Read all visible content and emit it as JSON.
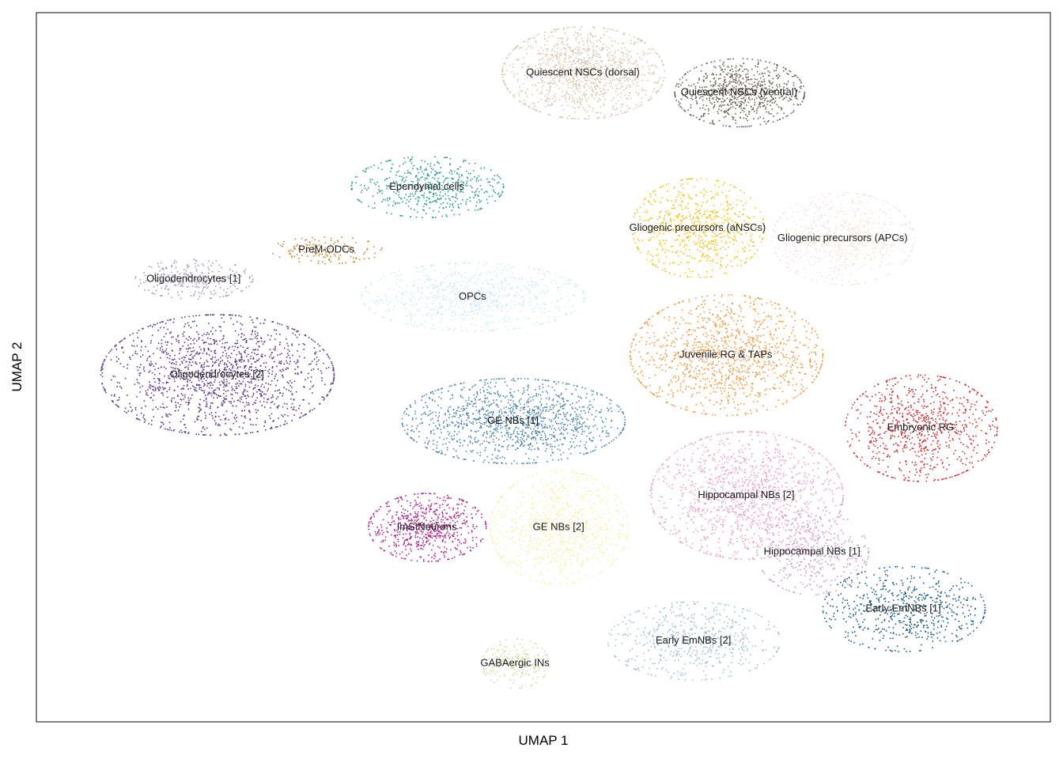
{
  "chart_data": {
    "type": "scatter",
    "title": "",
    "xlabel": "UMAP 1",
    "ylabel": "UMAP 2",
    "xlim": [
      0,
      100
    ],
    "ylim": [
      0,
      100
    ],
    "grid": false,
    "legend": "none (labels placed on clusters)",
    "series": [
      {
        "name": "Quiescent NSCs (dorsal)",
        "color": "#d9c6ae",
        "cx": 53.9,
        "cy": 91.6,
        "rx": 8.0,
        "ry": 6.5,
        "n": 1100
      },
      {
        "name": "Quiescent NSCs (ventral)",
        "color": "#6b6558",
        "cx": 69.3,
        "cy": 88.8,
        "rx": 6.4,
        "ry": 4.8,
        "n": 750
      },
      {
        "name": "Ependymal cells",
        "color": "#2a9d94",
        "cx": 38.5,
        "cy": 75.5,
        "rx": 7.5,
        "ry": 4.3,
        "n": 500
      },
      {
        "name": "Gliogenic precursors (aNSCs)",
        "color": "#f2c318",
        "cx": 65.2,
        "cy": 69.7,
        "rx": 6.5,
        "ry": 7.0,
        "n": 650
      },
      {
        "name": "Gliogenic precursors (APCs)",
        "color": "#f5dfd6",
        "cx": 79.5,
        "cy": 68.2,
        "rx": 7.0,
        "ry": 6.5,
        "n": 600
      },
      {
        "name": "PreM-ODCs",
        "color": "#c98a2f",
        "cx": 28.6,
        "cy": 66.6,
        "rx": 5.5,
        "ry": 1.9,
        "n": 140
      },
      {
        "name": "Oligodendrocytes [1]",
        "color": "#a993c4",
        "cx": 15.5,
        "cy": 62.5,
        "rx": 5.8,
        "ry": 2.8,
        "n": 250
      },
      {
        "name": "OPCs",
        "color": "#cde9f6",
        "cx": 43.0,
        "cy": 60.0,
        "rx": 11.0,
        "ry": 4.8,
        "n": 750
      },
      {
        "name": "Oligodendrocytes [2]",
        "color": "#5b3a8c",
        "cx": 17.8,
        "cy": 49.0,
        "rx": 11.5,
        "ry": 8.5,
        "n": 1500
      },
      {
        "name": "Juvenile RG & TAPs",
        "color": "#f09a3c",
        "cx": 68.0,
        "cy": 51.8,
        "rx": 9.5,
        "ry": 8.5,
        "n": 1150
      },
      {
        "name": "GE NBs [1]",
        "color": "#4f8aad",
        "cx": 47.0,
        "cy": 42.5,
        "rx": 11.0,
        "ry": 6.0,
        "n": 1300
      },
      {
        "name": "Embryonic RG",
        "color": "#cf3232",
        "cx": 87.2,
        "cy": 41.5,
        "rx": 7.5,
        "ry": 7.5,
        "n": 800
      },
      {
        "name": "ImStNeurons",
        "color": "#b02a8e",
        "cx": 38.5,
        "cy": 27.5,
        "rx": 5.8,
        "ry": 4.8,
        "n": 650
      },
      {
        "name": "Hippocampal NBs [2]",
        "color": "#eaa3c8",
        "cx": 70.0,
        "cy": 32.0,
        "rx": 9.5,
        "ry": 9.0,
        "n": 1300
      },
      {
        "name": "GE NBs [2]",
        "color": "#f5f3a4",
        "cx": 51.5,
        "cy": 27.5,
        "rx": 6.8,
        "ry": 8.0,
        "n": 800
      },
      {
        "name": "Hippocampal NBs [1]",
        "color": "#c89ac6",
        "cx": 76.5,
        "cy": 24.0,
        "rx": 5.5,
        "ry": 6.0,
        "n": 380
      },
      {
        "name": "Early EmNBs [1]",
        "color": "#175e80",
        "cx": 85.5,
        "cy": 16.0,
        "rx": 8.0,
        "ry": 6.0,
        "n": 600
      },
      {
        "name": "Early EmNBs [2]",
        "color": "#9fc0d6",
        "cx": 64.8,
        "cy": 11.5,
        "rx": 8.5,
        "ry": 5.5,
        "n": 550
      },
      {
        "name": "GABAergic INs",
        "color": "#d4dca0",
        "cx": 47.2,
        "cy": 8.3,
        "rx": 3.3,
        "ry": 3.5,
        "n": 200
      }
    ]
  }
}
